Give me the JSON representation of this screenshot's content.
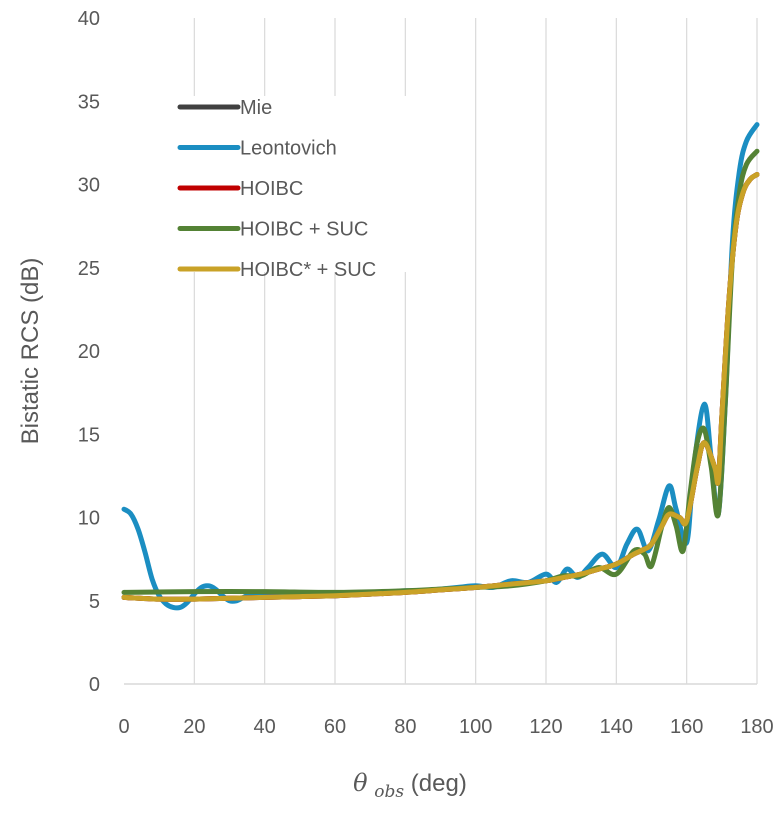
{
  "chart_data": {
    "type": "line",
    "xlabel": {
      "symbol": "θ",
      "subscript": "obs",
      "unit": " (deg)"
    },
    "ylabel": "Bistatic RCS (dB)",
    "xlim": [
      0,
      180
    ],
    "ylim": [
      0,
      40
    ],
    "xticks": [
      0,
      20,
      40,
      60,
      80,
      100,
      120,
      140,
      160,
      180
    ],
    "yticks": [
      0,
      5,
      10,
      15,
      20,
      25,
      30,
      35,
      40
    ],
    "grid": "vertical",
    "legend_position": "upper-left",
    "series": [
      {
        "name": "Mie",
        "color": "#404040",
        "x": [
          0,
          10,
          20,
          30,
          40,
          50,
          60,
          70,
          80,
          90,
          100,
          110,
          120,
          125,
          130,
          135,
          140,
          145,
          148,
          150,
          153,
          155,
          158,
          160,
          163,
          165,
          168,
          169,
          170,
          172,
          174,
          176,
          178,
          180
        ],
        "y": [
          5.2,
          5.1,
          5.1,
          5.15,
          5.2,
          5.25,
          5.3,
          5.4,
          5.5,
          5.65,
          5.8,
          6.0,
          6.2,
          6.4,
          6.6,
          6.9,
          7.2,
          7.8,
          8.1,
          8.4,
          9.5,
          10.2,
          10.0,
          9.8,
          13.0,
          14.5,
          13.0,
          12.2,
          16.0,
          23.0,
          27.5,
          29.5,
          30.3,
          30.6
        ]
      },
      {
        "name": "Leontovich",
        "color": "#1B8EC2",
        "x": [
          0,
          2,
          4,
          6,
          8,
          10,
          12,
          14,
          16,
          18,
          20,
          22,
          24,
          26,
          28,
          30,
          32,
          34,
          36,
          38,
          40,
          45,
          50,
          55,
          60,
          65,
          70,
          75,
          80,
          85,
          90,
          95,
          100,
          105,
          110,
          115,
          120,
          123,
          126,
          129,
          132,
          136,
          140,
          143,
          146,
          149,
          152,
          155,
          157,
          160,
          162,
          165,
          167,
          169,
          171,
          173,
          175,
          177,
          180
        ],
        "y": [
          10.5,
          10.2,
          9.3,
          7.9,
          6.3,
          5.3,
          4.8,
          4.6,
          4.6,
          4.9,
          5.4,
          5.8,
          5.9,
          5.7,
          5.3,
          5.0,
          5.0,
          5.2,
          5.4,
          5.4,
          5.3,
          5.4,
          5.3,
          5.3,
          5.3,
          5.4,
          5.4,
          5.5,
          5.6,
          5.6,
          5.7,
          5.8,
          5.9,
          5.8,
          6.2,
          6.1,
          6.6,
          6.1,
          6.9,
          6.4,
          7.0,
          7.8,
          7.0,
          8.4,
          9.3,
          8.0,
          9.8,
          11.9,
          10.5,
          8.5,
          13.0,
          16.8,
          13.5,
          10.2,
          17.0,
          26.5,
          30.8,
          32.6,
          33.6
        ]
      },
      {
        "name": "HOIBC",
        "color": "#C00000",
        "x": [
          0,
          10,
          20,
          30,
          40,
          50,
          60,
          70,
          80,
          90,
          100,
          110,
          120,
          125,
          130,
          135,
          140,
          145,
          148,
          150,
          153,
          155,
          158,
          160,
          163,
          165,
          168,
          169,
          170,
          172,
          174,
          176,
          178,
          180
        ],
        "y": [
          5.2,
          5.1,
          5.1,
          5.15,
          5.2,
          5.25,
          5.3,
          5.4,
          5.5,
          5.65,
          5.8,
          6.0,
          6.2,
          6.4,
          6.6,
          6.9,
          7.2,
          7.8,
          8.1,
          8.4,
          9.5,
          10.2,
          10.0,
          9.8,
          13.0,
          14.5,
          13.0,
          12.2,
          16.0,
          23.0,
          27.5,
          29.5,
          30.3,
          30.6
        ]
      },
      {
        "name": "HOIBC + SUC",
        "color": "#548235",
        "x": [
          0,
          20,
          40,
          60,
          80,
          90,
          100,
          110,
          120,
          125,
          130,
          135,
          140,
          145,
          148,
          150,
          153,
          155,
          157,
          159,
          161,
          163,
          165,
          167,
          169,
          171,
          173,
          175,
          177,
          180
        ],
        "y": [
          5.5,
          5.55,
          5.55,
          5.5,
          5.6,
          5.7,
          5.8,
          5.9,
          6.2,
          6.5,
          6.5,
          7.0,
          6.6,
          8.0,
          7.8,
          7.1,
          9.5,
          10.6,
          9.5,
          8.0,
          11.5,
          14.5,
          15.3,
          13.0,
          10.2,
          17.0,
          25.5,
          29.5,
          31.2,
          32.0
        ]
      },
      {
        "name": "HOIBC* + SUC",
        "color": "#C9A227",
        "x": [
          0,
          10,
          20,
          30,
          40,
          50,
          60,
          70,
          80,
          90,
          100,
          110,
          120,
          125,
          130,
          135,
          140,
          145,
          148,
          150,
          153,
          155,
          158,
          160,
          163,
          165,
          168,
          169,
          170,
          172,
          174,
          176,
          178,
          180
        ],
        "y": [
          5.2,
          5.1,
          5.1,
          5.15,
          5.2,
          5.25,
          5.3,
          5.4,
          5.5,
          5.65,
          5.8,
          6.0,
          6.2,
          6.4,
          6.6,
          6.9,
          7.2,
          7.8,
          8.1,
          8.4,
          9.5,
          10.2,
          10.0,
          9.8,
          13.0,
          14.5,
          13.0,
          12.2,
          16.0,
          23.0,
          27.5,
          29.5,
          30.3,
          30.6
        ]
      }
    ]
  }
}
